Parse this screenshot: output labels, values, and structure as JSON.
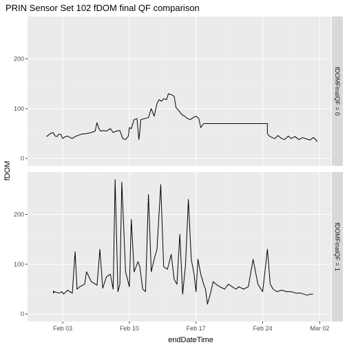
{
  "chart_data": {
    "type": "line",
    "title": "PRIN Sensor Set 102 fDOM final QF comparison",
    "xlabel": "endDateTime",
    "ylabel": "fDOM",
    "x_ticks": [
      {
        "label": "Feb 03",
        "day": 3
      },
      {
        "label": "Feb 10",
        "day": 10
      },
      {
        "label": "Feb 17",
        "day": 17
      },
      {
        "label": "Feb 24",
        "day": 24
      },
      {
        "label": "Mar 02",
        "day": 30
      }
    ],
    "xlim_day": [
      -0.7,
      31.2
    ],
    "y_ticks": [
      0,
      100,
      200
    ],
    "ylim": [
      -15,
      285
    ],
    "series_color": "#000000",
    "panel_color": "#ebebeb",
    "strip_color": "#d9d9d9",
    "panels": [
      {
        "strip": "fDOMFinalQF = 0",
        "points": [
          [
            1.3,
            44
          ],
          [
            1.5,
            47
          ],
          [
            1.7,
            50
          ],
          [
            2.0,
            52
          ],
          [
            2.2,
            45
          ],
          [
            2.4,
            44
          ],
          [
            2.6,
            49
          ],
          [
            2.8,
            48
          ],
          [
            3.0,
            40
          ],
          [
            3.2,
            43
          ],
          [
            3.5,
            45
          ],
          [
            3.8,
            42
          ],
          [
            4.0,
            40
          ],
          [
            4.3,
            44
          ],
          [
            4.7,
            47
          ],
          [
            5.0,
            49
          ],
          [
            5.5,
            50
          ],
          [
            6.0,
            52
          ],
          [
            6.4,
            55
          ],
          [
            6.6,
            72
          ],
          [
            6.8,
            60
          ],
          [
            7.0,
            55
          ],
          [
            7.3,
            56
          ],
          [
            7.6,
            55
          ],
          [
            8.0,
            60
          ],
          [
            8.3,
            52
          ],
          [
            8.6,
            55
          ],
          [
            9.0,
            56
          ],
          [
            9.3,
            40
          ],
          [
            9.6,
            38
          ],
          [
            9.9,
            45
          ],
          [
            10.0,
            62
          ],
          [
            10.2,
            60
          ],
          [
            10.5,
            78
          ],
          [
            10.8,
            80
          ],
          [
            11.0,
            38
          ],
          [
            11.1,
            55
          ],
          [
            11.2,
            78
          ],
          [
            11.6,
            80
          ],
          [
            12.0,
            82
          ],
          [
            12.3,
            100
          ],
          [
            12.6,
            85
          ],
          [
            12.9,
            110
          ],
          [
            13.1,
            118
          ],
          [
            13.4,
            115
          ],
          [
            13.6,
            120
          ],
          [
            13.9,
            118
          ],
          [
            14.1,
            130
          ],
          [
            14.4,
            128
          ],
          [
            14.7,
            125
          ],
          [
            14.9,
            102
          ],
          [
            15.2,
            96
          ],
          [
            15.5,
            88
          ],
          [
            15.8,
            85
          ],
          [
            16.1,
            80
          ],
          [
            16.4,
            78
          ],
          [
            16.7,
            82
          ],
          [
            17.0,
            85
          ],
          [
            17.3,
            80
          ],
          [
            17.5,
            62
          ],
          [
            17.8,
            70
          ],
          [
            18.0,
            70
          ],
          [
            20.0,
            70
          ],
          [
            22.0,
            70
          ],
          [
            24.5,
            70
          ],
          [
            24.5,
            50
          ],
          [
            24.7,
            45
          ],
          [
            25.0,
            42
          ],
          [
            25.3,
            40
          ],
          [
            25.6,
            46
          ],
          [
            26.0,
            40
          ],
          [
            26.3,
            38
          ],
          [
            26.7,
            45
          ],
          [
            27.0,
            40
          ],
          [
            27.4,
            44
          ],
          [
            27.8,
            38
          ],
          [
            28.2,
            42
          ],
          [
            28.6,
            39
          ],
          [
            29.0,
            37
          ],
          [
            29.3,
            42
          ],
          [
            29.6,
            38
          ],
          [
            29.7,
            33
          ]
        ]
      },
      {
        "strip": "fDOMFinalQF = 1",
        "points": [
          [
            2.0,
            47
          ],
          [
            2.05,
            42
          ],
          [
            2.1,
            45
          ],
          [
            2.6,
            42
          ],
          [
            2.9,
            45
          ],
          [
            3.1,
            40
          ],
          [
            3.5,
            48
          ],
          [
            4.0,
            42
          ],
          [
            4.3,
            125
          ],
          [
            4.5,
            50
          ],
          [
            4.8,
            55
          ],
          [
            5.3,
            60
          ],
          [
            5.5,
            85
          ],
          [
            6.0,
            65
          ],
          [
            6.6,
            58
          ],
          [
            6.9,
            130
          ],
          [
            7.2,
            52
          ],
          [
            7.6,
            75
          ],
          [
            8.0,
            80
          ],
          [
            8.3,
            50
          ],
          [
            8.5,
            270
          ],
          [
            8.8,
            45
          ],
          [
            9.0,
            60
          ],
          [
            9.2,
            265
          ],
          [
            9.6,
            85
          ],
          [
            10.0,
            55
          ],
          [
            10.2,
            190
          ],
          [
            10.5,
            85
          ],
          [
            10.9,
            105
          ],
          [
            11.1,
            95
          ],
          [
            11.4,
            50
          ],
          [
            11.7,
            45
          ],
          [
            12.0,
            240
          ],
          [
            12.3,
            85
          ],
          [
            12.6,
            110
          ],
          [
            12.9,
            130
          ],
          [
            13.3,
            260
          ],
          [
            13.6,
            95
          ],
          [
            14.0,
            90
          ],
          [
            14.4,
            120
          ],
          [
            14.7,
            70
          ],
          [
            15.0,
            60
          ],
          [
            15.3,
            160
          ],
          [
            15.6,
            40
          ],
          [
            15.9,
            100
          ],
          [
            16.2,
            230
          ],
          [
            16.5,
            110
          ],
          [
            16.8,
            80
          ],
          [
            17.0,
            45
          ],
          [
            17.2,
            110
          ],
          [
            17.5,
            80
          ],
          [
            17.8,
            60
          ],
          [
            18.0,
            50
          ],
          [
            18.2,
            20
          ],
          [
            18.5,
            40
          ],
          [
            18.8,
            65
          ],
          [
            19.1,
            60
          ],
          [
            19.5,
            55
          ],
          [
            20.0,
            50
          ],
          [
            20.4,
            60
          ],
          [
            20.8,
            55
          ],
          [
            21.2,
            50
          ],
          [
            21.5,
            55
          ],
          [
            22.0,
            50
          ],
          [
            22.5,
            55
          ],
          [
            23.0,
            110
          ],
          [
            23.5,
            60
          ],
          [
            24.0,
            45
          ],
          [
            24.5,
            130
          ],
          [
            24.8,
            60
          ],
          [
            25.1,
            50
          ],
          [
            25.5,
            45
          ],
          [
            26.0,
            48
          ],
          [
            26.5,
            45
          ],
          [
            27.0,
            45
          ],
          [
            27.5,
            42
          ],
          [
            28.0,
            42
          ],
          [
            28.3,
            40
          ],
          [
            28.7,
            38
          ],
          [
            29.0,
            40
          ],
          [
            29.3,
            40
          ]
        ]
      }
    ]
  }
}
